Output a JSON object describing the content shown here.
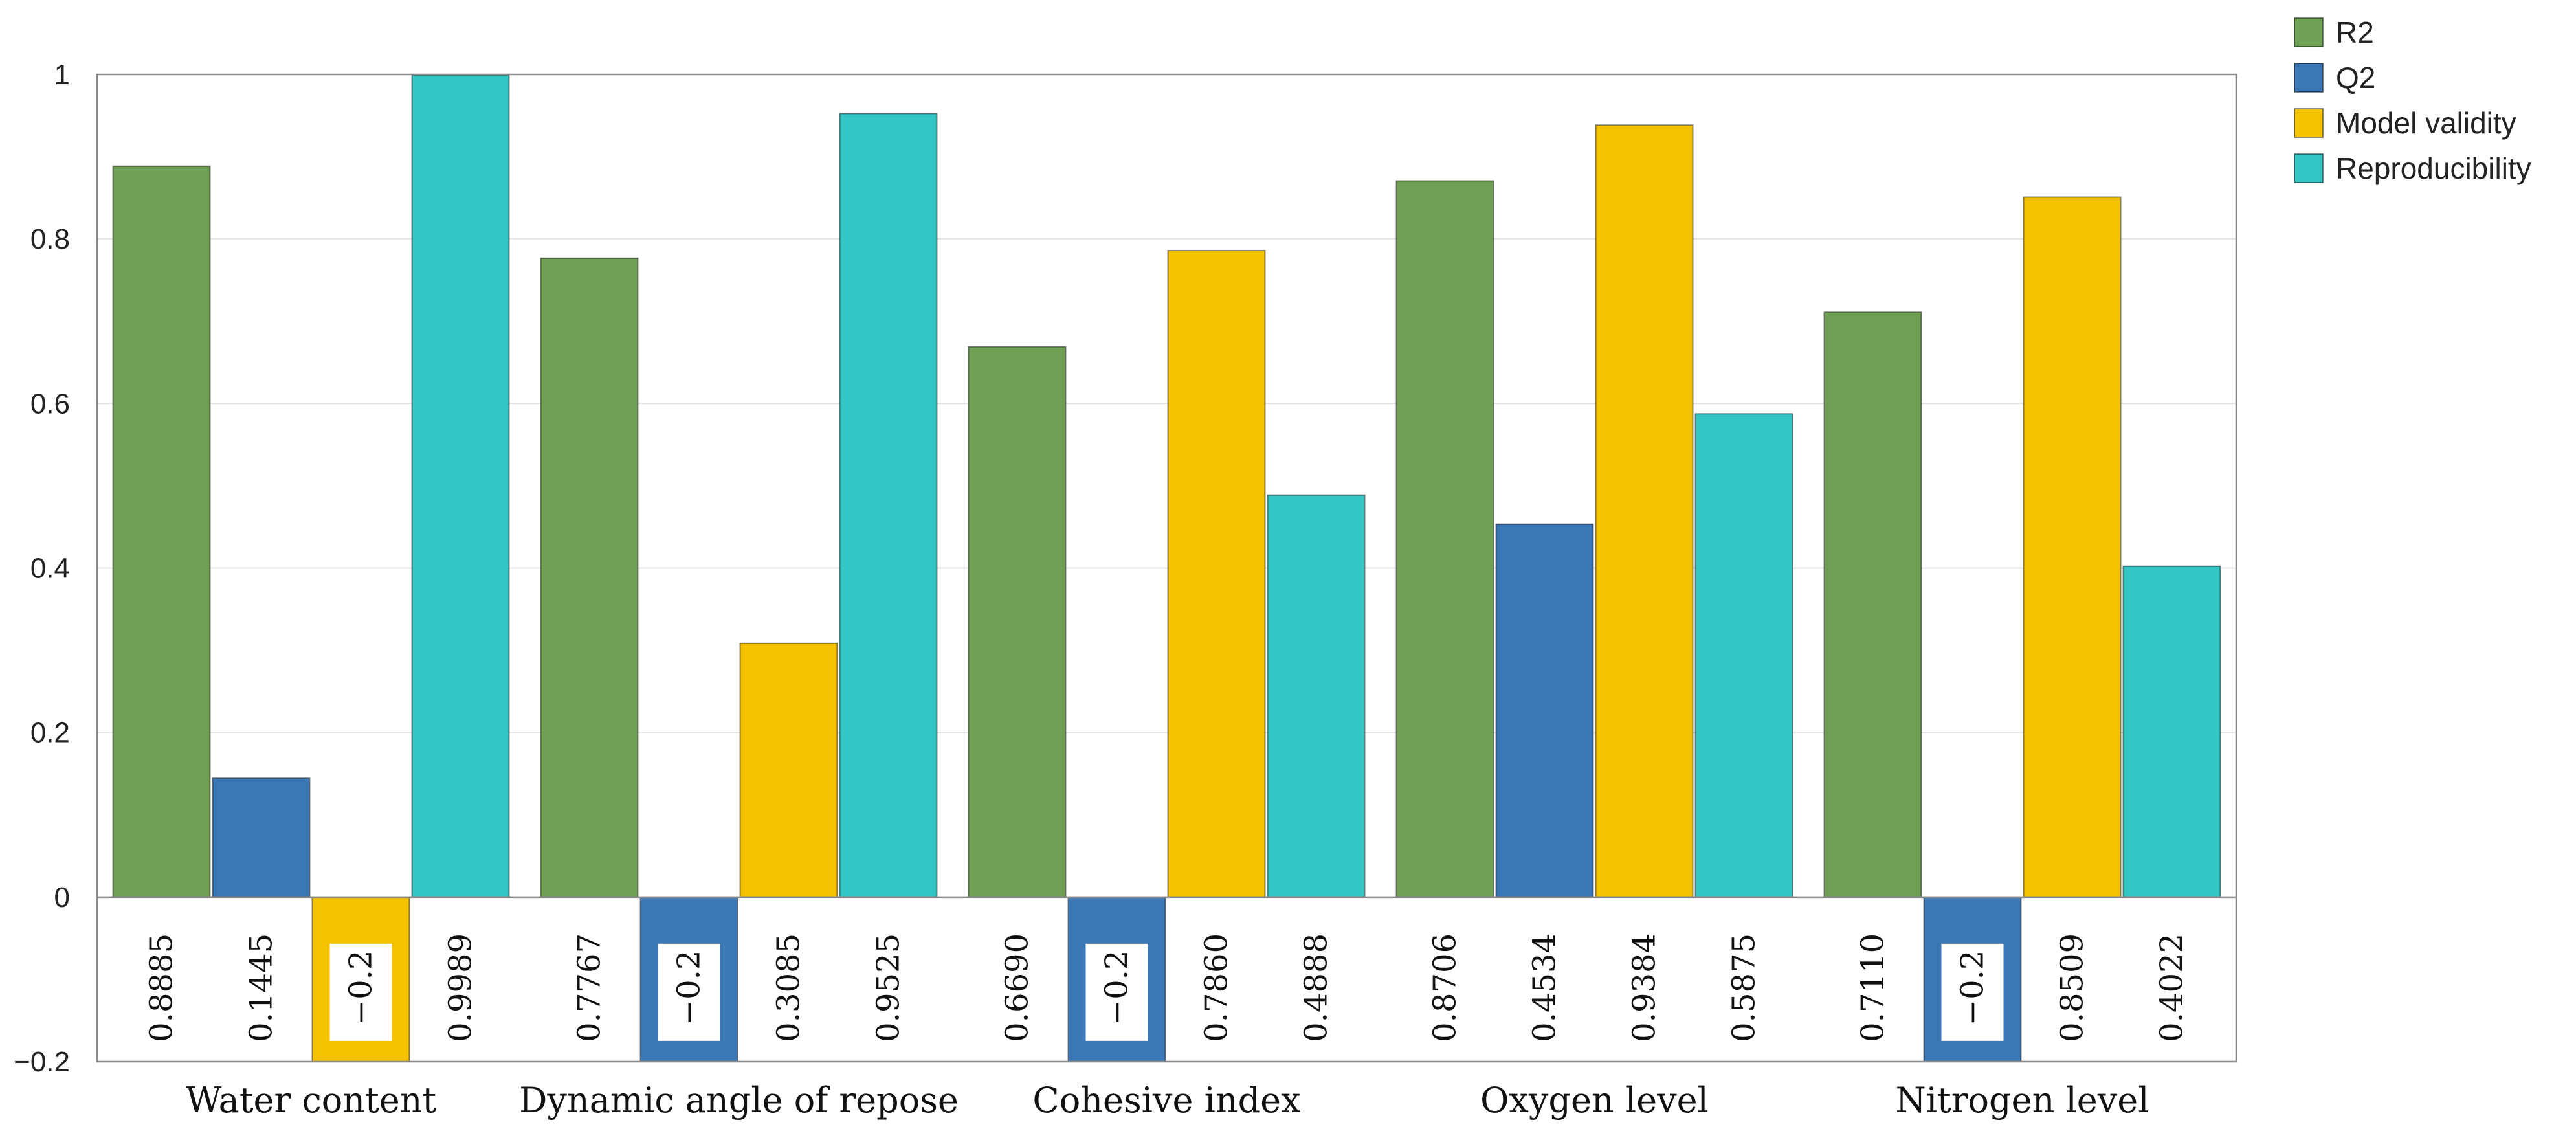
{
  "chart_data": {
    "type": "bar",
    "title": "",
    "xlabel": "",
    "ylabel": "",
    "ylim": [
      -0.2,
      1
    ],
    "yticks": [
      -0.2,
      0,
      0.2,
      0.4,
      0.6,
      0.8,
      1
    ],
    "ytick_labels": [
      "−0.2",
      "0",
      "0.2",
      "0.4",
      "0.6",
      "0.8",
      "1"
    ],
    "grid": true,
    "legend_position": "top-right",
    "categories": [
      "Water content",
      "Dynamic angle of repose",
      "Cohesive index",
      "Oxygen level",
      "Nitrogen level"
    ],
    "series": [
      {
        "name": "R2",
        "color": "#6fa154",
        "values": [
          0.8885,
          0.7767,
          0.669,
          0.8706,
          0.711
        ],
        "labels": [
          "0.8885",
          "0.7767",
          "0.6690",
          "0.8706",
          "0.7110"
        ]
      },
      {
        "name": "Q2",
        "color": "#3b76b5",
        "values": [
          0.1445,
          -0.2,
          -0.2,
          0.4534,
          -0.2
        ],
        "labels": [
          "0.1445",
          "−0.2",
          "−0.2",
          "0.4534",
          "−0.2"
        ]
      },
      {
        "name": "Model validity",
        "color": "#f5c200",
        "values": [
          -0.2,
          0.3085,
          0.786,
          0.9384,
          0.8509
        ],
        "labels": [
          "−0.2",
          "0.3085",
          "0.7860",
          "0.9384",
          "0.8509"
        ]
      },
      {
        "name": "Reproducibility",
        "color": "#33c4c4",
        "values": [
          0.9989,
          0.9525,
          0.4888,
          0.5875,
          0.4022
        ],
        "labels": [
          "0.9989",
          "0.9525",
          "0.4888",
          "0.5875",
          "0.4022"
        ]
      }
    ]
  }
}
